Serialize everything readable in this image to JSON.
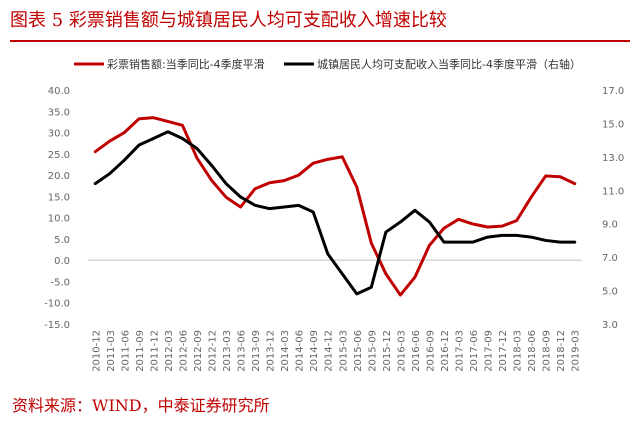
{
  "header": {
    "title": "图表 5  彩票销售额与城镇居民人均可支配收入增速比较"
  },
  "footer": {
    "source": "资料来源：WIND，中泰证券研究所"
  },
  "chart_data": {
    "type": "line",
    "legend_position": "top",
    "grid": false,
    "categories": [
      "2010-12",
      "2011-03",
      "2011-06",
      "2011-09",
      "2011-12",
      "2012-03",
      "2012-06",
      "2012-09",
      "2012-12",
      "2013-03",
      "2013-06",
      "2013-09",
      "2013-12",
      "2014-03",
      "2014-06",
      "2014-09",
      "2014-12",
      "2015-03",
      "2015-06",
      "2015-09",
      "2015-12",
      "2016-03",
      "2016-06",
      "2016-09",
      "2016-12",
      "2017-03",
      "2017-06",
      "2017-09",
      "2017-12",
      "2018-03",
      "2018-06",
      "2018-09",
      "2018-12",
      "2019-03"
    ],
    "x_tick_labels": [
      "2010-12",
      "2011-03",
      "2011-06",
      "2011-09",
      "2011-12",
      "2012-03",
      "2012-06",
      "2012-09",
      "2012-12",
      "2013-03",
      "2013-06",
      "2013-09",
      "2013-12",
      "2014-03",
      "2014-06",
      "2014-09",
      "2014-12",
      "2015-03",
      "2015-06",
      "2015-09",
      "2015-12",
      "2016-03",
      "2016-06",
      "2016-09",
      "2016-12",
      "2017-03",
      "2017-06",
      "2017-09",
      "2017-12",
      "2018-03",
      "2018-06",
      "2018-09",
      "2018-12",
      "2019-03"
    ],
    "y_left": {
      "ylim": [
        -15,
        40
      ],
      "ticks": [
        "-15.0",
        "-10.0",
        "-5.0",
        "0.0",
        "5.0",
        "10.0",
        "15.0",
        "20.0",
        "25.0",
        "30.0",
        "35.0",
        "40.0"
      ]
    },
    "y_right": {
      "ylim": [
        3,
        17
      ],
      "ticks": [
        "3.0",
        "5.0",
        "7.0",
        "9.0",
        "11.0",
        "13.0",
        "15.0",
        "17.0"
      ]
    },
    "series": [
      {
        "name": "彩票销售额:当季同比-4季度平滑",
        "axis": "left",
        "color": "#c00000",
        "values": [
          25.5,
          28.0,
          30.0,
          33.2,
          33.5,
          32.6,
          31.7,
          24.0,
          18.8,
          14.8,
          12.5,
          16.8,
          18.2,
          18.7,
          20.0,
          22.8,
          23.7,
          24.3,
          17.2,
          4.0,
          -3.2,
          -8.2,
          -4.0,
          3.5,
          7.5,
          9.6,
          8.5,
          7.8,
          8.0,
          9.3,
          14.8,
          19.8,
          19.6,
          18.0
        ]
      },
      {
        "name": "城镇居民人均可支配收入当季同比-4季度平滑（右轴）",
        "axis": "right",
        "color": "#000000",
        "values": [
          11.4,
          12.0,
          12.8,
          13.7,
          14.1,
          14.5,
          14.1,
          13.5,
          12.5,
          11.4,
          10.6,
          10.1,
          9.9,
          10.0,
          10.1,
          9.7,
          7.2,
          6.0,
          4.8,
          5.2,
          8.5,
          9.1,
          9.8,
          9.1,
          7.9,
          7.9,
          7.9,
          8.2,
          8.3,
          8.3,
          8.2,
          8.0,
          7.9,
          7.9
        ]
      }
    ]
  }
}
